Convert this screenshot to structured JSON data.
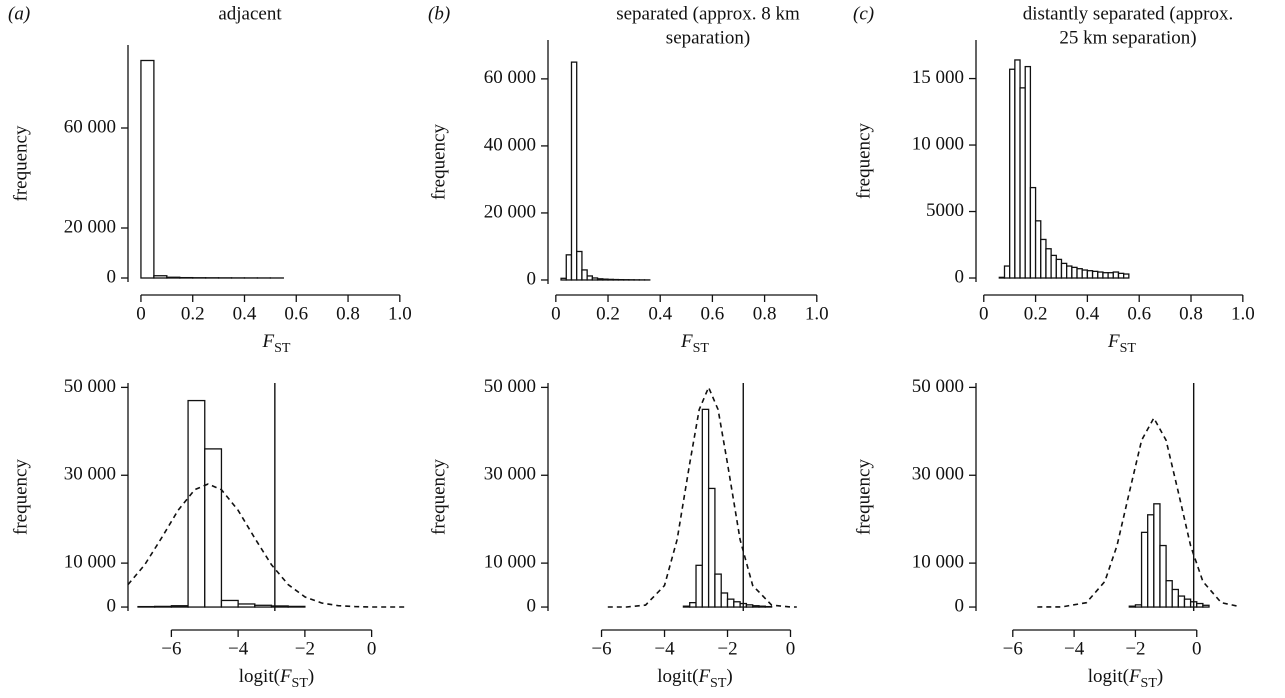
{
  "chart_data": [
    {
      "type": "histogram",
      "panel": "(a)",
      "title": [
        "adjacent"
      ],
      "ylabel": "frequency",
      "xlabel": "F",
      "xlabel_sub": "ST",
      "color": "#111111",
      "bins": [
        0,
        0.05,
        0.1,
        0.15,
        0.2,
        0.25,
        0.3,
        0.35,
        0.4,
        0.45,
        0.5,
        0.55
      ],
      "counts": [
        87000,
        900,
        300,
        150,
        100,
        80,
        60,
        40,
        30,
        20,
        10
      ],
      "xlim": [
        -0.05,
        1.02
      ],
      "ylim": [
        -1600,
        93200
      ],
      "xticks": [
        0,
        0.2,
        0.4,
        0.6,
        0.8,
        {
          "value": 1,
          "label": "1.0"
        }
      ],
      "yticks": [
        0,
        {
          "value": 20000,
          "label": "20 000"
        },
        {
          "value": 60000,
          "label": "60 000"
        }
      ]
    },
    {
      "type": "histogram",
      "panel": "(b)",
      "title": [
        "separated (approx. 8 km",
        "separation)"
      ],
      "ylabel": "frequency",
      "xlabel": "F",
      "xlabel_sub": "ST",
      "color": "#111111",
      "bins": [
        0.02,
        0.04,
        0.06,
        0.08,
        0.1,
        0.12,
        0.14,
        0.16,
        0.18,
        0.2,
        0.22,
        0.24,
        0.26,
        0.28,
        0.3,
        0.32,
        0.34,
        0.36
      ],
      "counts": [
        500,
        7500,
        65000,
        8500,
        3000,
        1200,
        600,
        350,
        250,
        180,
        130,
        100,
        80,
        60,
        40,
        30,
        20
      ],
      "xlim": [
        -0.03,
        1.02
      ],
      "ylim": [
        -1200,
        71600
      ],
      "xticks": [
        0,
        0.2,
        0.4,
        0.6,
        0.8,
        {
          "value": 1,
          "label": "1.0"
        }
      ],
      "yticks": [
        0,
        {
          "value": 20000,
          "label": "20 000"
        },
        {
          "value": 40000,
          "label": "40 000"
        },
        {
          "value": 60000,
          "label": "60 000"
        }
      ]
    },
    {
      "type": "histogram",
      "panel": "(c)",
      "title": [
        "distantly separated (approx.",
        "25 km separation)"
      ],
      "ylabel": "frequency",
      "xlabel": "F",
      "xlabel_sub": "ST",
      "color": "#111111",
      "bins": [
        0.06,
        0.08,
        0.1,
        0.12,
        0.14,
        0.16,
        0.18,
        0.2,
        0.22,
        0.24,
        0.26,
        0.28,
        0.3,
        0.32,
        0.34,
        0.36,
        0.38,
        0.4,
        0.42,
        0.44,
        0.46,
        0.48,
        0.5,
        0.52,
        0.54,
        0.56
      ],
      "counts": [
        50,
        900,
        15700,
        16400,
        14300,
        15900,
        6800,
        4300,
        2900,
        2200,
        1700,
        1400,
        1100,
        900,
        800,
        700,
        600,
        550,
        500,
        450,
        400,
        400,
        450,
        350,
        300
      ],
      "xlim": [
        -0.03,
        1.02
      ],
      "ylim": [
        -300,
        17900
      ],
      "xticks": [
        0,
        0.2,
        0.4,
        0.6,
        0.8,
        {
          "value": 1,
          "label": "1.0"
        }
      ],
      "yticks": [
        0,
        5000,
        {
          "value": 10000,
          "label": "10 000"
        },
        {
          "value": 15000,
          "label": "15 000"
        }
      ]
    },
    {
      "type": "histogram",
      "ylabel": "frequency",
      "xlabel_prefix": "logit(",
      "xlabel": "F",
      "xlabel_sub": "ST",
      "xlabel_suffix": ")",
      "color": "#111111",
      "bins": [
        -7,
        -6.5,
        -6,
        -5.5,
        -5,
        -4.5,
        -4,
        -3.5,
        -3,
        -2.5,
        -2
      ],
      "counts": [
        100,
        150,
        300,
        47000,
        36000,
        1500,
        700,
        400,
        250,
        150
      ],
      "reference_line": -2.9,
      "curve": {
        "x": [
          -7.3,
          -6.8,
          -6.3,
          -5.8,
          -5.3,
          -4.9,
          -4.5,
          -4,
          -3.5,
          -3,
          -2.5,
          -2,
          -1.5,
          -1,
          -0.5,
          0,
          0.5,
          1
        ],
        "y": [
          5100,
          9620,
          15680,
          22030,
          26710,
          28000,
          26710,
          22030,
          15680,
          9620,
          5100,
          2320,
          915,
          311,
          91,
          20,
          4,
          1
        ]
      },
      "xlim": [
        -7.3,
        1.0
      ],
      "ylim": [
        -900,
        51000
      ],
      "xticks": [
        {
          "value": -6,
          "label": "−6"
        },
        {
          "value": -4,
          "label": "−4"
        },
        {
          "value": -2,
          "label": "−2"
        },
        0
      ],
      "yticks": [
        0,
        {
          "value": 10000,
          "label": "10 000"
        },
        {
          "value": 30000,
          "label": "30 000"
        },
        {
          "value": 50000,
          "label": "50 000"
        }
      ]
    },
    {
      "type": "histogram",
      "ylabel": "frequency",
      "xlabel_prefix": "logit(",
      "xlabel": "F",
      "xlabel_sub": "ST",
      "xlabel_suffix": ")",
      "color": "#111111",
      "bins": [
        -3.4,
        -3.2,
        -3,
        -2.8,
        -2.6,
        -2.4,
        -2.2,
        -2,
        -1.8,
        -1.6,
        -1.4,
        -1.2,
        -1,
        -0.8,
        -0.6
      ],
      "counts": [
        200,
        1000,
        9500,
        45000,
        27000,
        7500,
        3200,
        1800,
        1200,
        800,
        500,
        300,
        200,
        100
      ],
      "reference_line": -1.5,
      "curve": {
        "x": [
          -5.8,
          -5.2,
          -4.6,
          -4,
          -3.6,
          -3.2,
          -2.9,
          -2.6,
          -2.3,
          -2,
          -1.6,
          -1.2,
          -0.6,
          0,
          0.2
        ],
        "y": [
          0,
          17,
          440,
          4900,
          15320,
          32650,
          44950,
          50000,
          44950,
          32650,
          15320,
          4900,
          440,
          17,
          5
        ]
      },
      "xlim": [
        -7.7,
        1.0
      ],
      "ylim": [
        -900,
        51000
      ],
      "xticks": [
        {
          "value": -6,
          "label": "−6"
        },
        {
          "value": -4,
          "label": "−4"
        },
        {
          "value": -2,
          "label": "−2"
        },
        0
      ],
      "yticks": [
        0,
        {
          "value": 10000,
          "label": "10 000"
        },
        {
          "value": 30000,
          "label": "30 000"
        },
        {
          "value": 50000,
          "label": "50 000"
        }
      ]
    },
    {
      "type": "histogram",
      "ylabel": "frequency",
      "xlabel_prefix": "logit(",
      "xlabel": "F",
      "xlabel_sub": "ST",
      "xlabel_suffix": ")",
      "color": "#111111",
      "bins": [
        -2.2,
        -2,
        -1.8,
        -1.6,
        -1.4,
        -1.2,
        -1,
        -0.8,
        -0.6,
        -0.4,
        -0.2,
        0,
        0.2,
        0.4
      ],
      "counts": [
        200,
        500,
        17000,
        21000,
        23500,
        14000,
        6000,
        4000,
        2500,
        1800,
        1200,
        800,
        400
      ],
      "reference_line": -0.1,
      "curve": {
        "x": [
          -5.2,
          -4.4,
          -3.6,
          -3,
          -2.6,
          -2.2,
          -1.8,
          -1.4,
          -1,
          -0.6,
          -0.2,
          0.2,
          0.8,
          1.4
        ],
        "y": [
          1,
          38,
          980,
          5820,
          13960,
          26080,
          37950,
          43000,
          37950,
          26080,
          13960,
          5820,
          980,
          94
        ]
      },
      "xlim": [
        -7.2,
        1.9
      ],
      "ylim": [
        -900,
        51000
      ],
      "xticks": [
        {
          "value": -6,
          "label": "−6"
        },
        {
          "value": -4,
          "label": "−4"
        },
        {
          "value": -2,
          "label": "−2"
        },
        0
      ],
      "yticks": [
        0,
        {
          "value": 10000,
          "label": "10 000"
        },
        {
          "value": 30000,
          "label": "30 000"
        },
        {
          "value": 50000,
          "label": "50 000"
        }
      ]
    }
  ]
}
